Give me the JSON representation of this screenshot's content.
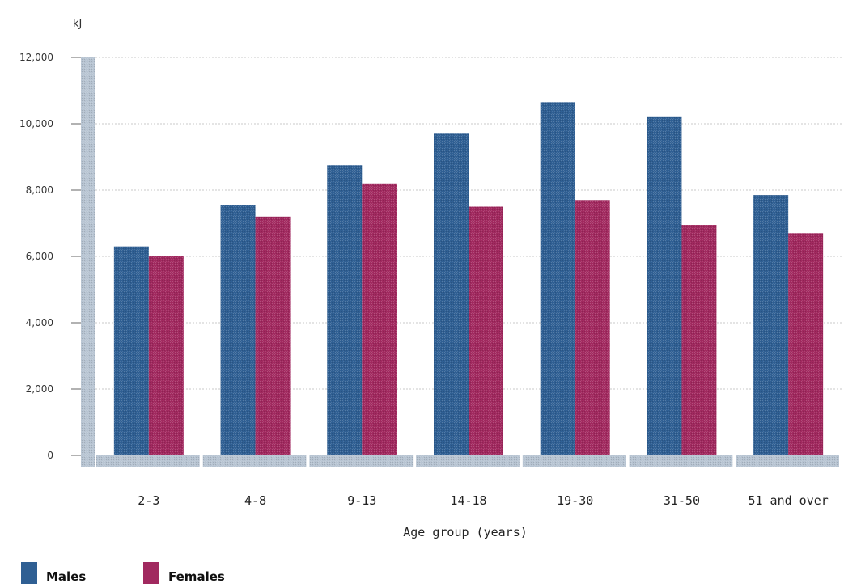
{
  "chart_data": {
    "type": "bar",
    "unit_label": "kJ",
    "xlabel": "Age group (years)",
    "ylabel": "",
    "ylim": [
      0,
      12000
    ],
    "yticks": [
      0,
      2000,
      4000,
      6000,
      8000,
      10000,
      12000
    ],
    "ytick_labels": [
      "0",
      "2,000",
      "4,000",
      "6,000",
      "8,000",
      "10,000",
      "12,000"
    ],
    "grid": true,
    "legend_position": "bottom-left",
    "categories": [
      "2-3",
      "4-8",
      "9-13",
      "14-18",
      "19-30",
      "31-50",
      "51 and over"
    ],
    "series": [
      {
        "name": "Males",
        "color": "#2f5f93",
        "values": [
          6300,
          7550,
          8750,
          9700,
          10650,
          10200,
          7850
        ]
      },
      {
        "name": "Females",
        "color": "#a1295f",
        "values": [
          6000,
          7200,
          8200,
          7500,
          7700,
          6950,
          6700
        ]
      }
    ],
    "axis_color": "#b7c4d2"
  }
}
